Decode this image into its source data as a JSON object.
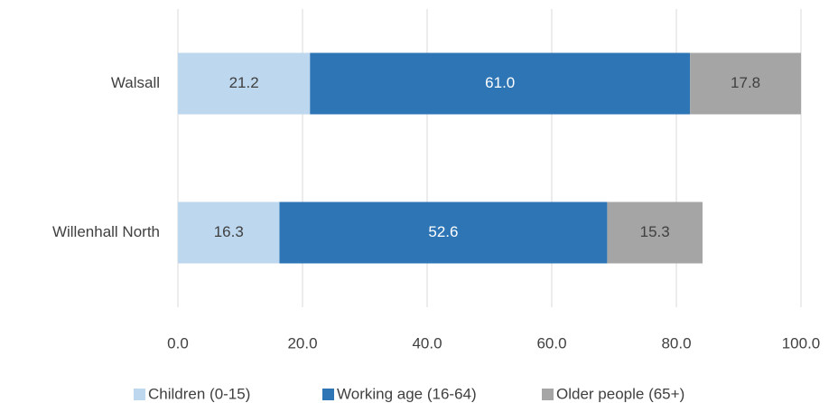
{
  "chart_data": {
    "type": "stacked-barh",
    "categories": [
      "Walsall",
      "Willenhall North"
    ],
    "series": [
      {
        "name": "Children (0-15)",
        "color": "#bdd7ee",
        "values": [
          21.2,
          16.3
        ],
        "value_labels": [
          "21.2",
          "16.3"
        ]
      },
      {
        "name": "Working age (16-64)",
        "color": "#2e75b6",
        "values": [
          61.0,
          52.6
        ],
        "value_labels": [
          "61.0",
          "52.6"
        ]
      },
      {
        "name": "Older people (65+)",
        "color": "#a5a5a5",
        "values": [
          17.8,
          15.3
        ],
        "value_labels": [
          "17.8",
          "15.3"
        ]
      }
    ],
    "xlim": [
      0,
      100
    ],
    "xticks": [
      {
        "value": 0,
        "label": "0.0"
      },
      {
        "value": 20,
        "label": "20.0"
      },
      {
        "value": 40,
        "label": "40.0"
      },
      {
        "value": 60,
        "label": "60.0"
      },
      {
        "value": 80,
        "label": "80.0"
      },
      {
        "value": 100,
        "label": "100.0"
      }
    ],
    "grid": true,
    "legend": "bottom"
  }
}
